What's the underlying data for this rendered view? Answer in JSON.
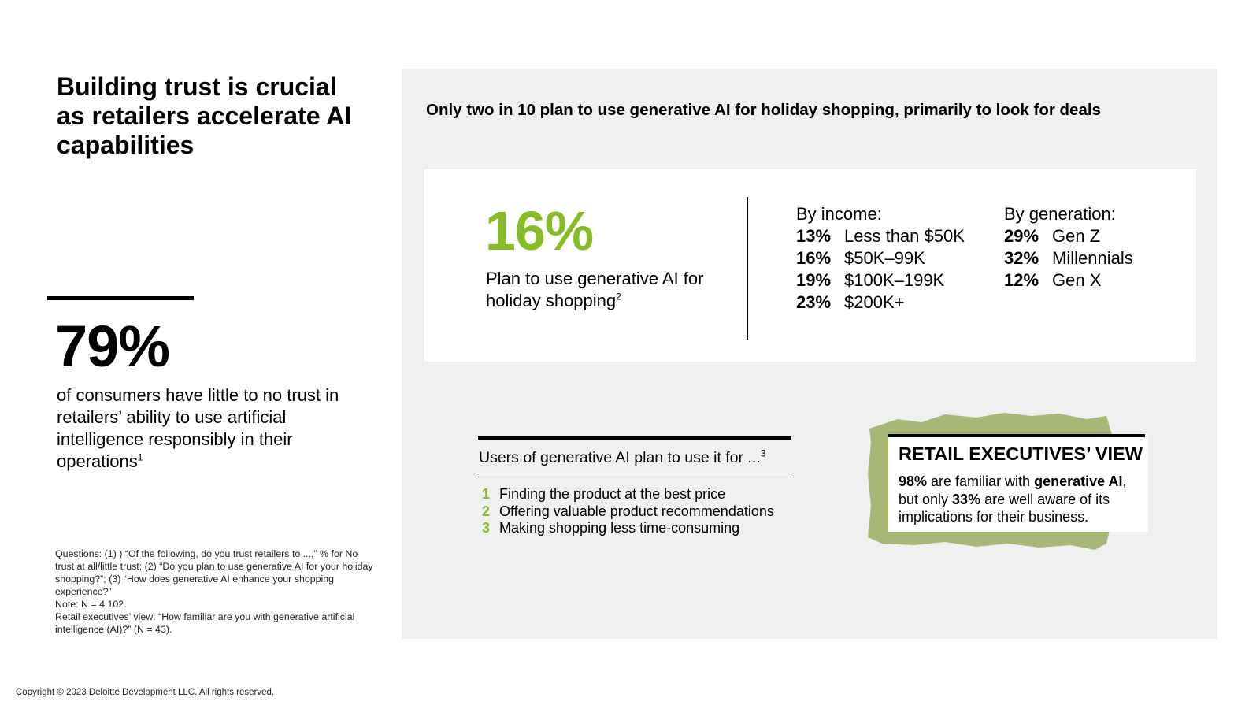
{
  "left": {
    "headline": "Building trust is crucial as retailers accelerate AI capabilities",
    "stat_value": "79%",
    "stat_text": "of consumers have little to no trust in retailers’ ability to use artificial intelligence responsibly in their operations",
    "stat_sup": "1",
    "footnotes": [
      "Questions: (1) ) “Of the following, do you trust retailers to ...,” % for No trust at all/little trust; (2) “Do you plan to use generative AI for your holiday shopping?”; (3) “How does generative AI enhance your shopping experience?”",
      "Note: N = 4,102.",
      "Retail executives’ view: “How familiar are you with generative artificial intelligence (AI)?” (N = 43)."
    ]
  },
  "copyright": "Copyright © 2023 Deloitte Development LLC. All rights reserved.",
  "panel": {
    "title": "Only two in 10 plan to use generative AI for holiday shopping, primarily to look for deals",
    "plan": {
      "value": "16%",
      "text": "Plan to use generative AI for holiday shopping",
      "sup": "2"
    },
    "by_income": {
      "title": "By income:",
      "rows": [
        {
          "value": "13%",
          "label": "Less than $50K"
        },
        {
          "value": "16%",
          "label": "$50K–99K"
        },
        {
          "value": "19%",
          "label": "$100K–199K"
        },
        {
          "value": "23%",
          "label": "$200K+"
        }
      ]
    },
    "by_generation": {
      "title": "By generation:",
      "rows": [
        {
          "value": "29%",
          "label": "Gen Z"
        },
        {
          "value": "32%",
          "label": "Millennials"
        },
        {
          "value": "12%",
          "label": "Gen X"
        }
      ]
    },
    "users": {
      "title": "Users of generative AI plan to use it for ...",
      "title_sup": "3",
      "items": [
        {
          "num": "1",
          "text": "Finding the product at the best price"
        },
        {
          "num": "2",
          "text": "Offering valuable product recommendations"
        },
        {
          "num": "3",
          "text": "Making shopping less time-consuming"
        }
      ]
    },
    "exec": {
      "title": "RETAIL EXECUTIVES’ VIEW",
      "p1_value": "98%",
      "p1_text": " are familiar with ",
      "p1_bold": "generative AI",
      "p2_text": ", but only ",
      "p2_value": "33%",
      "p3_text": " are well aware of its implications for their business."
    }
  },
  "colors": {
    "accent_green": "#86bc25",
    "panel_gray": "#f0f0f0",
    "paper_green": "#9fb06a"
  }
}
